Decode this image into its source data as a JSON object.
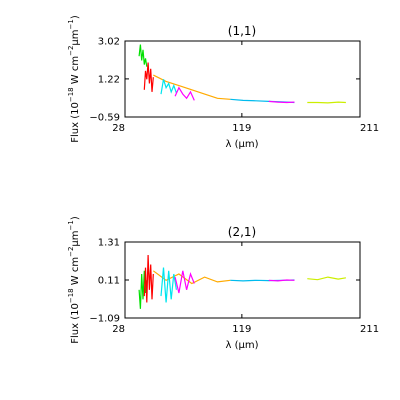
{
  "chart_data": [
    {
      "type": "line",
      "title": "(1,1)",
      "xlabel_symbol": "λ",
      "xlabel_unit": "(μm)",
      "ylabel_parts": {
        "pre": "Flux (10",
        "exp1": "−18",
        "mid1": " W cm",
        "exp2": "−2",
        "mu": "μm",
        "exp3": "−1",
        "post": ")"
      },
      "xlim": [
        28,
        211
      ],
      "ylim": [
        -0.59,
        3.02
      ],
      "x_ticks": [
        28,
        119,
        211
      ],
      "x_tick_labels": [
        "28",
        "119",
        "211"
      ],
      "y_ticks": [
        -0.59,
        1.22,
        3.02
      ],
      "y_tick_labels": [
        "−0.59",
        "1.22",
        "3.02"
      ],
      "grid": false,
      "legend": "none",
      "series": [
        {
          "color": "#00e000",
          "x": [
            39,
            40,
            41,
            42,
            43,
            44,
            45
          ],
          "y": [
            2.3,
            2.85,
            2.1,
            2.6,
            1.9,
            2.2,
            1.8
          ]
        },
        {
          "color": "#ff0000",
          "x": [
            43,
            44,
            45,
            46,
            47,
            48,
            49,
            50
          ],
          "y": [
            0.7,
            1.6,
            1.2,
            2.0,
            1.0,
            1.7,
            0.6,
            1.3
          ]
        },
        {
          "color": "#ffaa00",
          "x": [
            50,
            60,
            70,
            80,
            90,
            100,
            110
          ],
          "y": [
            1.4,
            1.1,
            0.9,
            0.7,
            0.5,
            0.3,
            0.25
          ]
        },
        {
          "color": "#00e5ee",
          "x": [
            56,
            58,
            60,
            62,
            64,
            66,
            68
          ],
          "y": [
            0.5,
            1.2,
            0.8,
            1.0,
            0.6,
            0.9,
            0.55
          ]
        },
        {
          "color": "#ff00ff",
          "x": [
            67,
            70,
            73,
            76,
            79,
            82
          ],
          "y": [
            0.4,
            0.8,
            0.5,
            0.3,
            0.6,
            0.2
          ]
        },
        {
          "color": "#00bbee",
          "x": [
            110,
            120,
            130,
            140,
            150,
            160
          ],
          "y": [
            0.25,
            0.2,
            0.18,
            0.15,
            0.13,
            0.1
          ]
        },
        {
          "color": "#ff00ff",
          "x": [
            140,
            147,
            154,
            160
          ],
          "y": [
            0.15,
            0.12,
            0.1,
            0.12
          ]
        },
        {
          "color": "#ccee00",
          "x": [
            170,
            178,
            186,
            194,
            200
          ],
          "y": [
            0.1,
            0.1,
            0.08,
            0.12,
            0.1
          ]
        }
      ]
    },
    {
      "type": "line",
      "title": "(2,1)",
      "xlabel_symbol": "λ",
      "xlabel_unit": "(μm)",
      "ylabel_parts": {
        "pre": "Flux (10",
        "exp1": "−18",
        "mid1": " W cm",
        "exp2": "−2",
        "mu": "μm",
        "exp3": "−1",
        "post": ")"
      },
      "xlim": [
        28,
        211
      ],
      "ylim": [
        -1.09,
        1.31
      ],
      "x_ticks": [
        28,
        119,
        211
      ],
      "x_tick_labels": [
        "28",
        "119",
        "211"
      ],
      "y_ticks": [
        -1.09,
        0.11,
        1.31
      ],
      "y_tick_labels": [
        "−1.09",
        "0.11",
        "1.31"
      ],
      "grid": false,
      "legend": "none",
      "series": [
        {
          "color": "#00e000",
          "x": [
            39,
            40,
            41,
            42,
            43,
            44,
            45
          ],
          "y": [
            -0.2,
            -0.8,
            0.3,
            -0.5,
            0.4,
            -0.3,
            0.1
          ]
        },
        {
          "color": "#ff0000",
          "x": [
            43,
            44,
            45,
            46,
            47,
            48,
            49,
            50
          ],
          "y": [
            -0.4,
            0.5,
            -0.6,
            0.9,
            -0.2,
            0.6,
            -0.5,
            0.3
          ]
        },
        {
          "color": "#ffaa00",
          "x": [
            50,
            60,
            70,
            80,
            90,
            100,
            110
          ],
          "y": [
            0.4,
            0.1,
            0.3,
            0.0,
            0.2,
            0.05,
            0.1
          ]
        },
        {
          "color": "#00e5ee",
          "x": [
            56,
            58,
            60,
            62,
            64,
            66,
            68
          ],
          "y": [
            -0.4,
            0.5,
            -0.6,
            0.4,
            -0.5,
            0.3,
            -0.2
          ]
        },
        {
          "color": "#ff00ff",
          "x": [
            67,
            70,
            73,
            76,
            79,
            82
          ],
          "y": [
            0.2,
            -0.3,
            0.4,
            -0.2,
            0.3,
            0.0
          ]
        },
        {
          "color": "#00bbee",
          "x": [
            110,
            120,
            130,
            140,
            150,
            160
          ],
          "y": [
            0.1,
            0.08,
            0.1,
            0.09,
            0.1,
            0.11
          ]
        },
        {
          "color": "#ff00ff",
          "x": [
            140,
            147,
            154,
            160
          ],
          "y": [
            0.1,
            0.08,
            0.11,
            0.1
          ]
        },
        {
          "color": "#ccee00",
          "x": [
            170,
            178,
            186,
            194,
            200
          ],
          "y": [
            0.15,
            0.12,
            0.2,
            0.14,
            0.18
          ]
        }
      ]
    }
  ]
}
